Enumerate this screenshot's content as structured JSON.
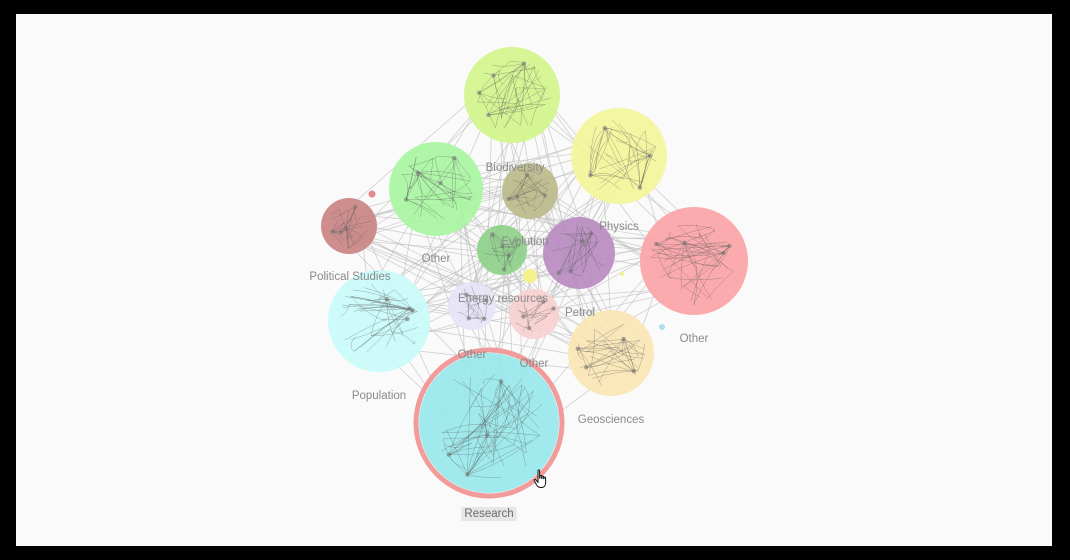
{
  "graph": {
    "selected_cluster": "Research",
    "edge_color": "#bdbdbd",
    "selection_ring_color": "#f29b9b",
    "clusters": [
      {
        "id": "c-biodiversity",
        "label": "Biodiversity",
        "color": "#d3f58c"
      },
      {
        "id": "c-physics",
        "label": "Physics",
        "color": "#f3f59a"
      },
      {
        "id": "c-other-green",
        "label": "Other",
        "color": "#a9f5a2"
      },
      {
        "id": "c-olive",
        "label": "",
        "color": "#bcbb8b"
      },
      {
        "id": "c-political",
        "label": "Political Studies",
        "color": "#c98483"
      },
      {
        "id": "c-evolution",
        "label": "Evolution",
        "color": "#8fd08a"
      },
      {
        "id": "c-purple",
        "label": "",
        "color": "#b98cc0"
      },
      {
        "id": "c-other-red",
        "label": "Other",
        "color": "#fba4a6"
      },
      {
        "id": "c-energy",
        "label": "Energy resources",
        "color": "#e6e4f6"
      },
      {
        "id": "c-other-pink",
        "label": "Other",
        "color": "#f8d0d0"
      },
      {
        "id": "c-petrol",
        "label": "Petrol",
        "color": "#ffffff"
      },
      {
        "id": "c-population",
        "label": "Population",
        "color": "#c9fbfa"
      },
      {
        "id": "c-geosciences",
        "label": "Geosciences",
        "color": "#fbe6b4"
      },
      {
        "id": "c-other-lavender",
        "label": "Other",
        "color": "#e6e4f6"
      },
      {
        "id": "c-research",
        "label": "Research",
        "color": "#98e7ea"
      }
    ],
    "mini_nodes": [
      {
        "id": "n-red-dot",
        "color": "#e48a8a"
      },
      {
        "id": "n-yellow-dot",
        "color": "#f4f28a"
      },
      {
        "id": "n-blue-dot",
        "color": "#a9dff0"
      },
      {
        "id": "n-tiny-dot",
        "color": "#f4f28a"
      }
    ]
  }
}
